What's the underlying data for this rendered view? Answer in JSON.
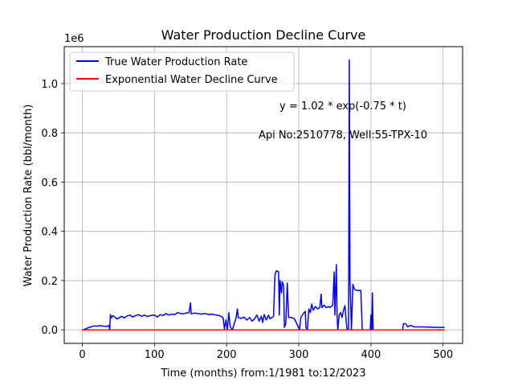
{
  "chart_data": {
    "type": "line",
    "title": "Water Production Decline Curve",
    "xlabel": "Time (months) from:1/1981 to:12/2023",
    "ylabel": "Water Production Rate (bbl/month)",
    "y_offset_label": "1e6",
    "xlim": [
      -25,
      527
    ],
    "ylim": [
      -55000,
      1150000
    ],
    "x_ticks": [
      0,
      100,
      200,
      300,
      400,
      500
    ],
    "y_ticks": [
      0,
      200000,
      400000,
      600000,
      800000,
      1000000
    ],
    "y_tick_labels": [
      "0.0",
      "0.2",
      "0.4",
      "0.6",
      "0.8",
      "1.0"
    ],
    "grid": true,
    "legend_position": "top-left",
    "annotations": [
      "y = 1.02 * exp(-0.75 * t)",
      "Api No:2510778, Well:55-TPX-10"
    ],
    "series": [
      {
        "name": "True Water Production Rate",
        "color": "#0000ff",
        "points": [
          [
            0,
            0
          ],
          [
            4,
            3000
          ],
          [
            8,
            8000
          ],
          [
            12,
            12000
          ],
          [
            16,
            16000
          ],
          [
            20,
            15000
          ],
          [
            25,
            17000
          ],
          [
            30,
            15000
          ],
          [
            35,
            14000
          ],
          [
            37,
            18000
          ],
          [
            38,
            0
          ],
          [
            39,
            62000
          ],
          [
            40,
            48000
          ],
          [
            42,
            58000
          ],
          [
            45,
            52000
          ],
          [
            48,
            44000
          ],
          [
            52,
            50000
          ],
          [
            55,
            55000
          ],
          [
            58,
            48000
          ],
          [
            62,
            56000
          ],
          [
            66,
            60000
          ],
          [
            70,
            52000
          ],
          [
            74,
            58000
          ],
          [
            78,
            62000
          ],
          [
            82,
            55000
          ],
          [
            86,
            60000
          ],
          [
            90,
            54000
          ],
          [
            95,
            58000
          ],
          [
            100,
            60000
          ],
          [
            104,
            52000
          ],
          [
            108,
            62000
          ],
          [
            112,
            58000
          ],
          [
            116,
            66000
          ],
          [
            120,
            60000
          ],
          [
            124,
            64000
          ],
          [
            128,
            62000
          ],
          [
            132,
            70000
          ],
          [
            136,
            66000
          ],
          [
            140,
            65000
          ],
          [
            144,
            68000
          ],
          [
            148,
            70000
          ],
          [
            150,
            110000
          ],
          [
            151,
            65000
          ],
          [
            155,
            68000
          ],
          [
            160,
            66000
          ],
          [
            165,
            64000
          ],
          [
            170,
            66000
          ],
          [
            175,
            62000
          ],
          [
            180,
            64000
          ],
          [
            185,
            60000
          ],
          [
            190,
            58000
          ],
          [
            195,
            50000
          ],
          [
            197,
            3000
          ],
          [
            199,
            40000
          ],
          [
            201,
            0
          ],
          [
            203,
            70000
          ],
          [
            205,
            12000
          ],
          [
            208,
            0
          ],
          [
            210,
            20000
          ],
          [
            213,
            48000
          ],
          [
            215,
            85000
          ],
          [
            216,
            50000
          ],
          [
            220,
            46000
          ],
          [
            224,
            52000
          ],
          [
            228,
            40000
          ],
          [
            232,
            50000
          ],
          [
            235,
            35000
          ],
          [
            238,
            42000
          ],
          [
            242,
            60000
          ],
          [
            245,
            35000
          ],
          [
            248,
            55000
          ],
          [
            250,
            30000
          ],
          [
            252,
            62000
          ],
          [
            255,
            40000
          ],
          [
            258,
            60000
          ],
          [
            260,
            45000
          ],
          [
            263,
            50000
          ],
          [
            265,
            55000
          ],
          [
            267,
            225000
          ],
          [
            269,
            240000
          ],
          [
            272,
            235000
          ],
          [
            273,
            60000
          ],
          [
            274,
            200000
          ],
          [
            276,
            150000
          ],
          [
            277,
            195000
          ],
          [
            279,
            180000
          ],
          [
            280,
            10000
          ],
          [
            282,
            25000
          ],
          [
            284,
            190000
          ],
          [
            286,
            50000
          ],
          [
            290,
            50000
          ],
          [
            294,
            45000
          ],
          [
            298,
            20000
          ],
          [
            301,
            0
          ],
          [
            303,
            50000
          ],
          [
            306,
            65000
          ],
          [
            309,
            75000
          ],
          [
            310,
            10000
          ],
          [
            312,
            0
          ],
          [
            314,
            85000
          ],
          [
            316,
            70000
          ],
          [
            318,
            105000
          ],
          [
            320,
            80000
          ],
          [
            323,
            95000
          ],
          [
            326,
            85000
          ],
          [
            329,
            90000
          ],
          [
            331,
            145000
          ],
          [
            332,
            90000
          ],
          [
            335,
            100000
          ],
          [
            338,
            90000
          ],
          [
            341,
            95000
          ],
          [
            343,
            90000
          ],
          [
            345,
            95000
          ],
          [
            347,
            100000
          ],
          [
            349,
            235000
          ],
          [
            350,
            60000
          ],
          [
            352,
            265000
          ],
          [
            353,
            60000
          ],
          [
            354,
            0
          ],
          [
            356,
            60000
          ],
          [
            358,
            70000
          ],
          [
            360,
            50000
          ],
          [
            362,
            80000
          ],
          [
            364,
            98000
          ],
          [
            365,
            60000
          ],
          [
            367,
            0
          ],
          [
            369,
            0
          ],
          [
            370,
            1095000
          ],
          [
            371,
            200000
          ],
          [
            373,
            0
          ],
          [
            375,
            185000
          ],
          [
            377,
            165000
          ],
          [
            380,
            160000
          ],
          [
            386,
            160000
          ],
          [
            388,
            0
          ],
          [
            399,
            0
          ],
          [
            400,
            60000
          ],
          [
            401,
            0
          ],
          [
            402,
            150000
          ],
          [
            403,
            0
          ],
          [
            444,
            0
          ],
          [
            445,
            25000
          ],
          [
            448,
            25000
          ],
          [
            451,
            12000
          ],
          [
            455,
            18000
          ],
          [
            460,
            12000
          ],
          [
            470,
            12000
          ],
          [
            480,
            11000
          ],
          [
            490,
            10000
          ],
          [
            502,
            10000
          ]
        ]
      },
      {
        "name": "Exponential Water Decline Curve",
        "color": "#ff0000",
        "points": [
          [
            0,
            1
          ],
          [
            502,
            0
          ]
        ]
      }
    ]
  }
}
